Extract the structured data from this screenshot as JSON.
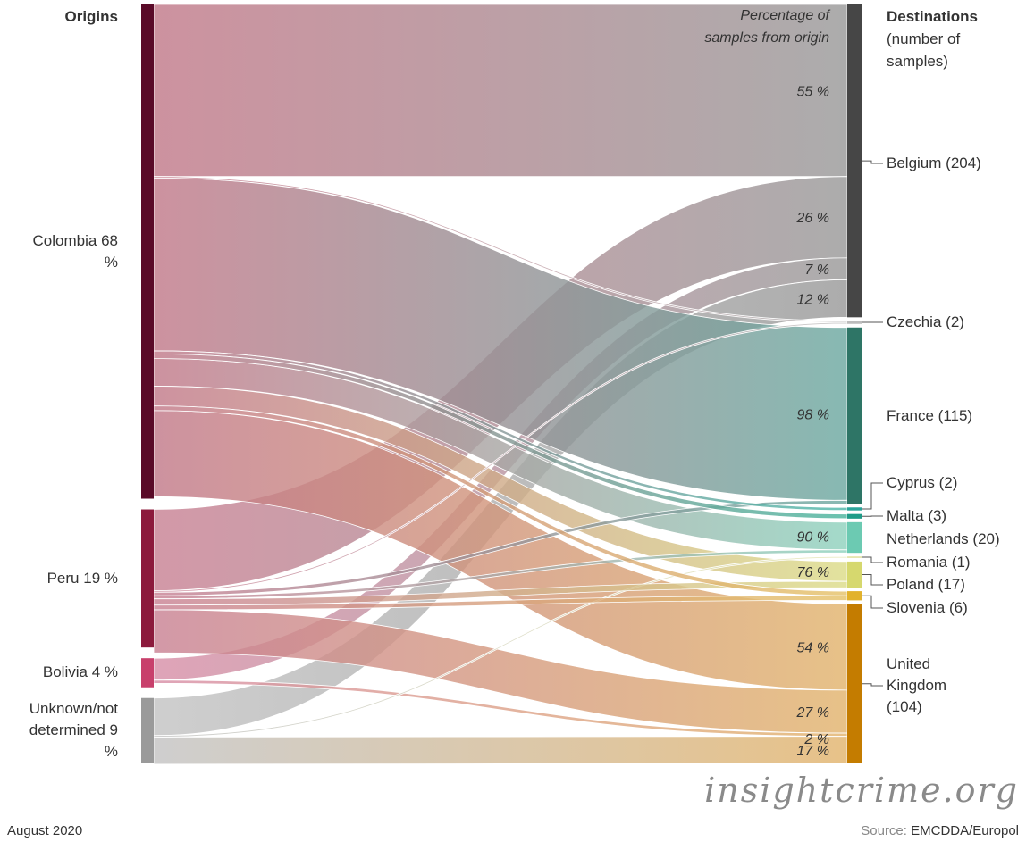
{
  "chart_data": {
    "type": "sankey",
    "origins_title": "Origins",
    "destinations_title": "Destinations",
    "destinations_subtitle": [
      "(number of",
      "samples)"
    ],
    "percentage_header": [
      "Percentage of",
      "samples from origin"
    ],
    "origins": {
      "categories": [
        "Colombia",
        "Peru",
        "Bolivia",
        "Unknown/not determined"
      ],
      "values": [
        68,
        19,
        4,
        9
      ],
      "value_labels": [
        "68 %",
        "19 %",
        "4 %",
        "9 %"
      ],
      "colors": [
        "#5a0a28",
        "#8c1a3c",
        "#c8406c",
        "#9a9a9a"
      ],
      "flow_colors": [
        "#c27a8a",
        "#c98294",
        "#d890a8",
        "#c4c4c4"
      ]
    },
    "destinations": {
      "categories": [
        "Belgium",
        "Czechia",
        "France",
        "Cyprus",
        "Malta",
        "Netherlands",
        "Romania",
        "Poland",
        "Slovenia",
        "United Kingdom"
      ],
      "values": [
        204,
        2,
        115,
        2,
        3,
        20,
        1,
        17,
        6,
        104
      ],
      "value_labels": [
        "(204)",
        "(2)",
        "(115)",
        "(2)",
        "(3)",
        "(20)",
        "(1)",
        "(17)",
        "(6)",
        "(104)"
      ],
      "colors": [
        "#464646",
        "#bcbcbc",
        "#2e7566",
        "#2aa59a",
        "#1f9c88",
        "#6ccab2",
        "#e4e4a8",
        "#d6d86e",
        "#e2b22c",
        "#c47c00"
      ],
      "flow_colors": [
        "#9a9a9a",
        "#bdbdbd",
        "#6da9a1",
        "#4fb8aa",
        "#4bb59e",
        "#8fd2be",
        "#e6e6b4",
        "#dcdc88",
        "#e6c36a",
        "#e2b46e"
      ]
    },
    "flows": [
      {
        "source": 0,
        "target": 0,
        "value": 55,
        "label": "55 %"
      },
      {
        "source": 1,
        "target": 0,
        "value": 26,
        "label": "26 %"
      },
      {
        "source": 2,
        "target": 0,
        "value": 7,
        "label": "7 %"
      },
      {
        "source": 3,
        "target": 0,
        "value": 12,
        "label": "12 %"
      },
      {
        "source": 0,
        "target": 2,
        "value": 98,
        "label": "98 %"
      },
      {
        "source": 0,
        "target": 5,
        "value": 90,
        "label": "90 %"
      },
      {
        "source": 0,
        "target": 7,
        "value": 76,
        "label": "76 %"
      },
      {
        "source": 0,
        "target": 9,
        "value": 54,
        "label": "54 %"
      },
      {
        "source": 1,
        "target": 9,
        "value": 27,
        "label": "27 %"
      },
      {
        "source": 2,
        "target": 9,
        "value": 2,
        "label": "2 %"
      },
      {
        "source": 3,
        "target": 9,
        "value": 17,
        "label": "17 %"
      }
    ],
    "minor_flows": [
      {
        "source": 0,
        "target": 1,
        "value": 50
      },
      {
        "source": 1,
        "target": 1,
        "value": 50
      },
      {
        "source": 1,
        "target": 2,
        "value": 2
      },
      {
        "source": 0,
        "target": 3,
        "value": 100
      },
      {
        "source": 0,
        "target": 4,
        "value": 100
      },
      {
        "source": 1,
        "target": 5,
        "value": 10
      },
      {
        "source": 3,
        "target": 6,
        "value": 100
      },
      {
        "source": 1,
        "target": 7,
        "value": 24
      },
      {
        "source": 0,
        "target": 8,
        "value": 50
      },
      {
        "source": 1,
        "target": 8,
        "value": 50
      }
    ],
    "watermark": "insightcrime.org",
    "date": "August 2020",
    "source_label": "Source:",
    "source": "EMCDDA/Europol"
  }
}
